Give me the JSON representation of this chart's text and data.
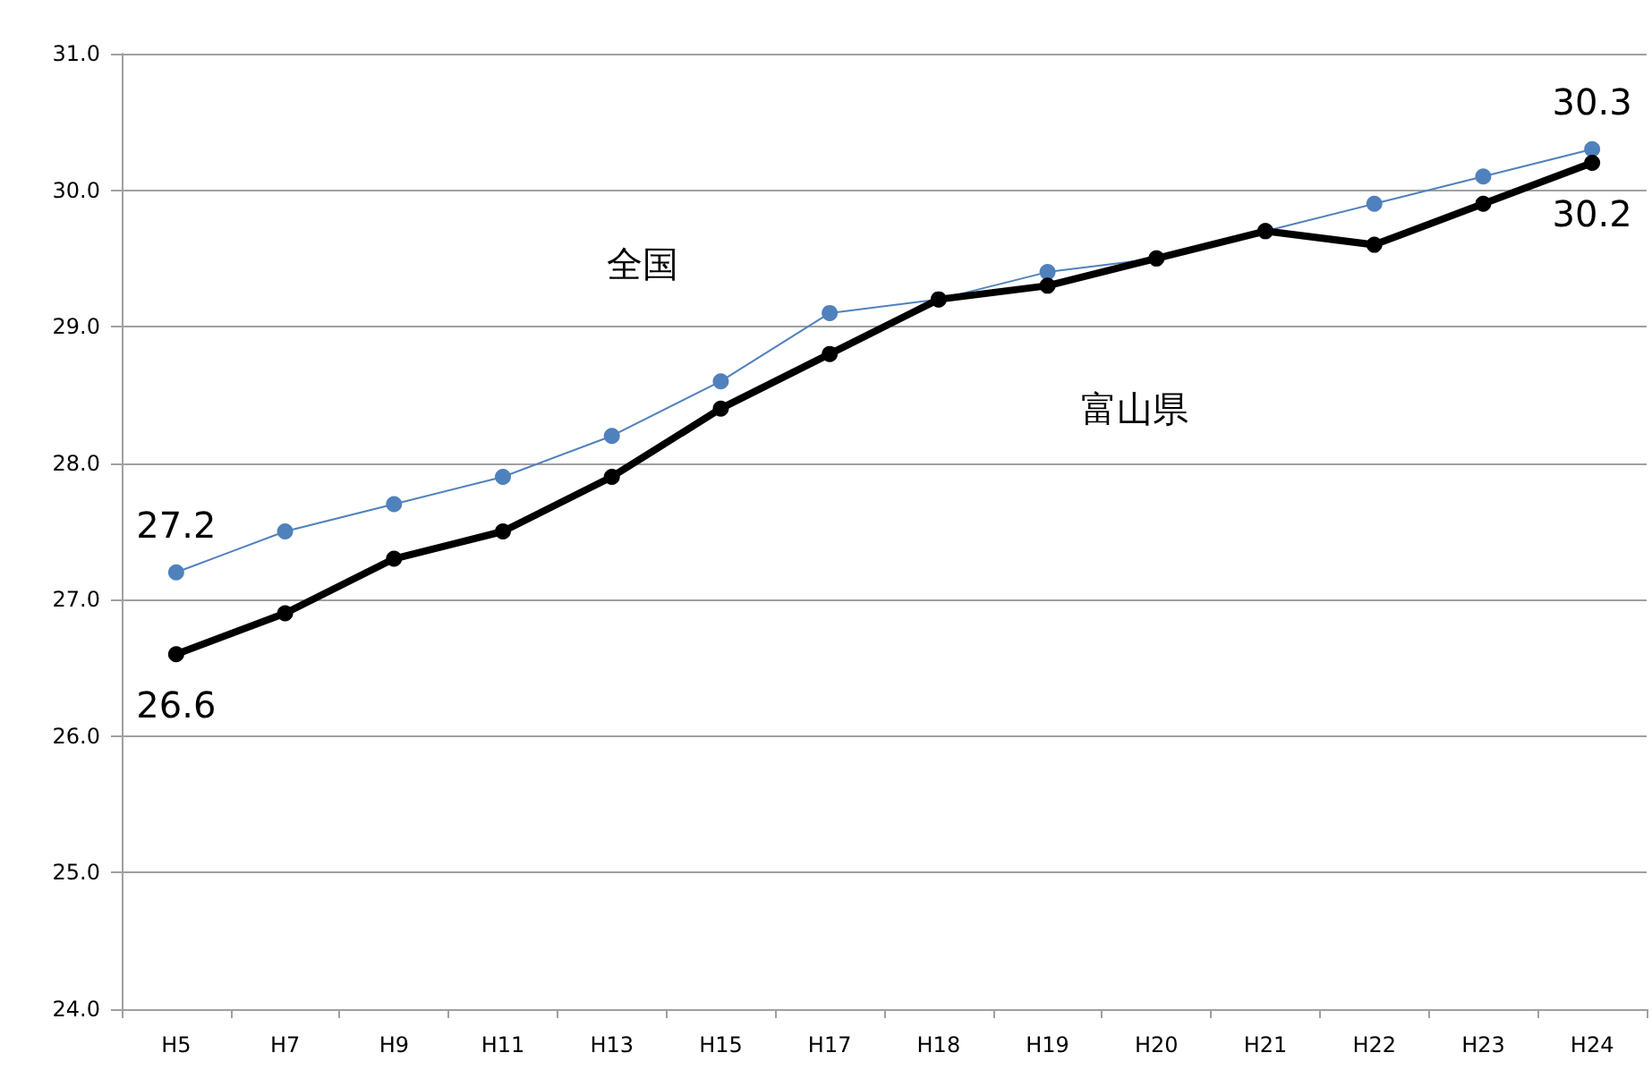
{
  "chart_data": {
    "type": "line",
    "categories": [
      "H5",
      "H7",
      "H9",
      "H11",
      "H13",
      "H15",
      "H17",
      "H18",
      "H19",
      "H20",
      "H21",
      "H22",
      "H23",
      "H24"
    ],
    "series": [
      {
        "name": "全国",
        "color": "#4f81bd",
        "values": [
          27.2,
          27.5,
          27.7,
          27.9,
          28.2,
          28.6,
          29.1,
          29.2,
          29.4,
          29.5,
          29.7,
          29.9,
          30.1,
          30.3
        ],
        "value_labels": [
          "27.2",
          null,
          null,
          null,
          null,
          null,
          null,
          null,
          null,
          null,
          null,
          null,
          null,
          "30.3"
        ]
      },
      {
        "name": "富山県",
        "color": "#000000",
        "values": [
          26.6,
          26.9,
          27.3,
          27.5,
          27.9,
          28.4,
          28.8,
          29.2,
          29.3,
          29.5,
          29.7,
          29.6,
          29.9,
          30.2
        ],
        "value_labels": [
          "26.6",
          null,
          null,
          null,
          null,
          null,
          null,
          null,
          null,
          null,
          null,
          null,
          null,
          "30.2"
        ]
      }
    ],
    "ylim": [
      24,
      31
    ],
    "yticks": [
      {
        "value": 24,
        "label": "24.0"
      },
      {
        "value": 25,
        "label": "25.0"
      },
      {
        "value": 26,
        "label": "26.0"
      },
      {
        "value": 27,
        "label": "27.0"
      },
      {
        "value": 28,
        "label": "28.0"
      },
      {
        "value": 29,
        "label": "29.0"
      },
      {
        "value": 30,
        "label": "30.0"
      },
      {
        "value": 31,
        "label": "31.0"
      }
    ],
    "grid": "y",
    "legend": false,
    "marker": "circle",
    "line_style": "solid"
  }
}
